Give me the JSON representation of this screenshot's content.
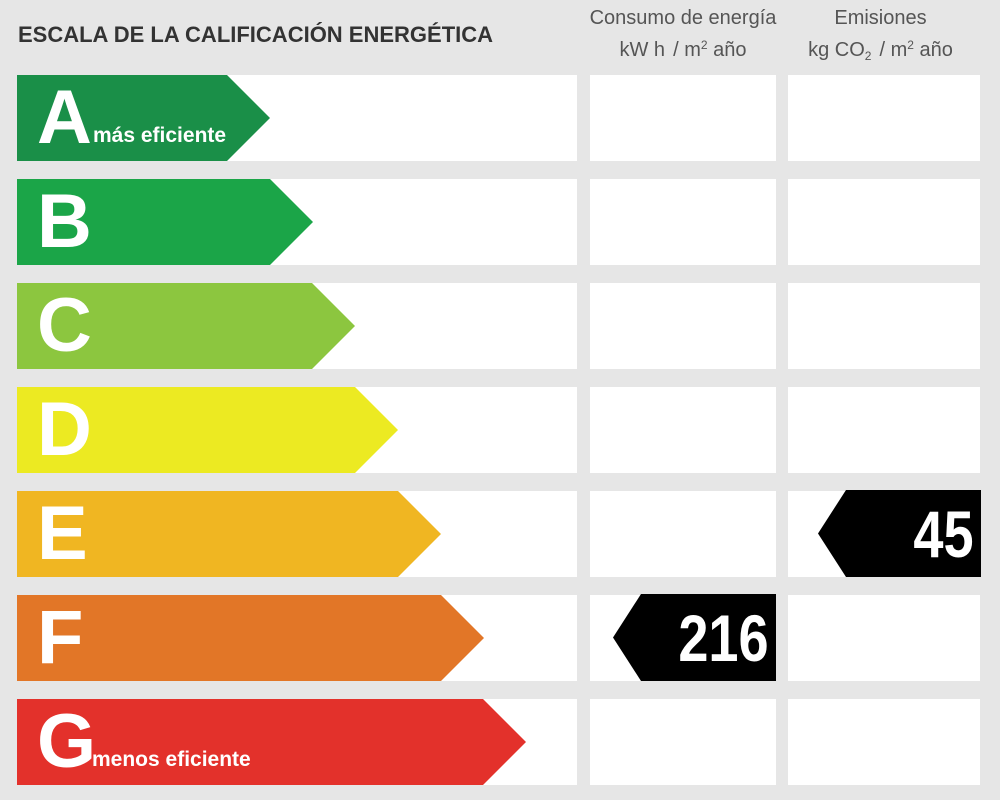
{
  "chart_data": {
    "type": "table",
    "title": "ESCALA DE LA CALIFICACIÓN ENERGÉTICA",
    "columns": {
      "energy": {
        "label": "Consumo de energía",
        "unit_prefix": "kW h",
        "unit_base": "m",
        "unit_sup": "2",
        "unit_suffix": "año"
      },
      "emissions": {
        "label": "Emisiones",
        "unit_prefix": "kg CO",
        "unit_sub": "2",
        "unit_base": "m",
        "unit_sup": "2",
        "unit_suffix": "año"
      }
    },
    "ratings": [
      {
        "letter": "A",
        "description": "más eficiente",
        "color": "#1a8f48"
      },
      {
        "letter": "B",
        "description": "",
        "color": "#1ba548"
      },
      {
        "letter": "C",
        "description": "",
        "color": "#8cc63f"
      },
      {
        "letter": "D",
        "description": "",
        "color": "#ecea22"
      },
      {
        "letter": "E",
        "description": "",
        "color": "#f0b622"
      },
      {
        "letter": "F",
        "description": "",
        "color": "#e27627"
      },
      {
        "letter": "G",
        "description": "menos eficiente",
        "color": "#e3312b"
      }
    ],
    "energy_consumption": {
      "rating": "F",
      "value": 216
    },
    "emissions": {
      "rating": "E",
      "value": 45
    }
  }
}
